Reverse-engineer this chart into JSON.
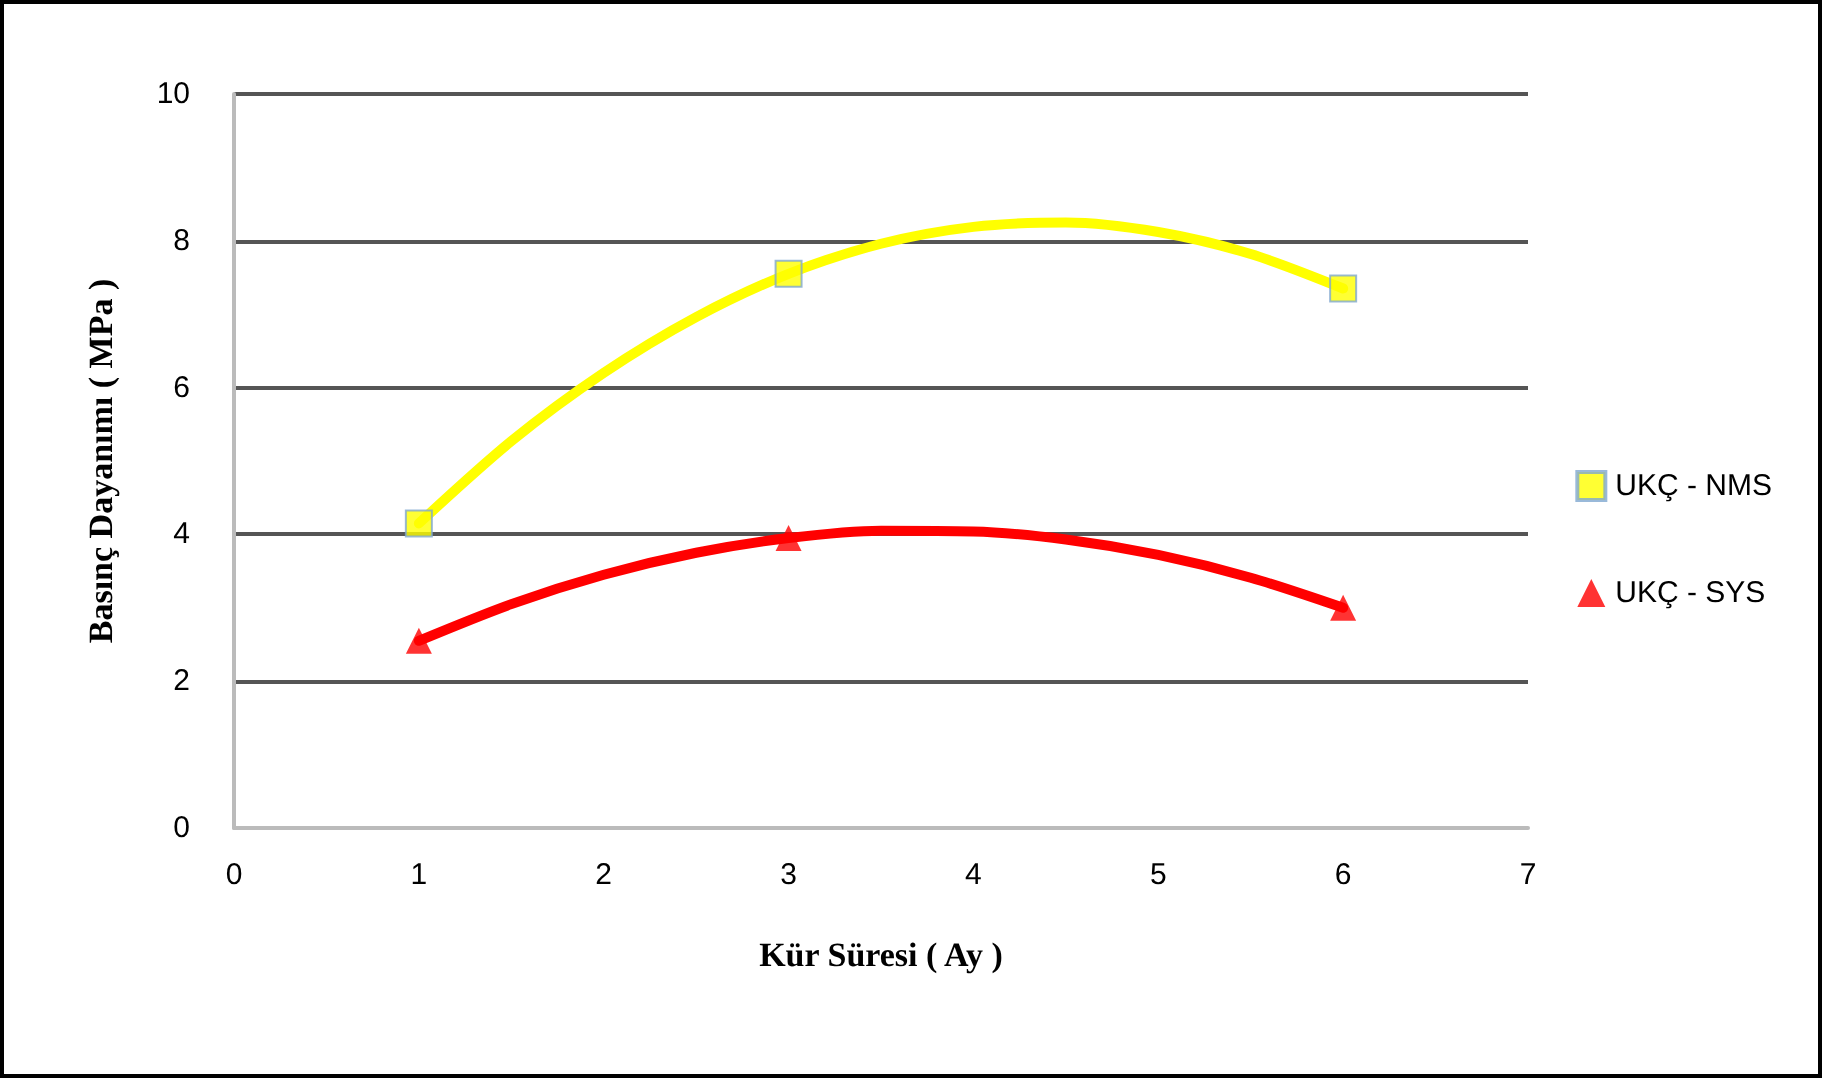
{
  "chart_data": {
    "type": "scatter",
    "xlabel": "Kür Süresi ( Ay )",
    "ylabel": "Basınç Dayanımı ( MPa )",
    "xlim": [
      0,
      7
    ],
    "xticks": [
      0,
      1,
      2,
      3,
      4,
      5,
      6,
      7
    ],
    "ylim": [
      0,
      10
    ],
    "yticks": [
      0,
      2,
      4,
      6,
      8,
      10
    ],
    "grid": "y",
    "legend": "right",
    "series": [
      {
        "type": "line",
        "color": "#ffff00",
        "marker": "none",
        "x": [
          1,
          1.5,
          2,
          2.5,
          3,
          3.5,
          4,
          4.5,
          5,
          5.5,
          6
        ],
        "values": [
          4.15,
          5.27,
          6.2,
          6.96,
          7.55,
          7.96,
          8.19,
          8.25,
          8.12,
          7.82,
          7.35
        ]
      },
      {
        "type": "line",
        "color": "#ff0000",
        "marker": "none",
        "x": [
          1,
          1.5,
          2,
          2.5,
          3,
          3.5,
          4,
          4.5,
          5,
          5.5,
          6
        ],
        "values": [
          2.55,
          3.05,
          3.45,
          3.75,
          3.95,
          4.05,
          4.04,
          3.93,
          3.72,
          3.41,
          3.0
        ]
      },
      {
        "name": "UKÇ - NMS",
        "color": "#ffff00",
        "marker": "square",
        "x": [
          1,
          3,
          6
        ],
        "values": [
          4.15,
          7.55,
          7.35
        ]
      },
      {
        "name": "UKÇ - SYS",
        "color": "#ff0000",
        "marker": "triangle",
        "x": [
          1,
          3,
          6
        ],
        "values": [
          2.55,
          3.95,
          3.0
        ]
      }
    ]
  }
}
